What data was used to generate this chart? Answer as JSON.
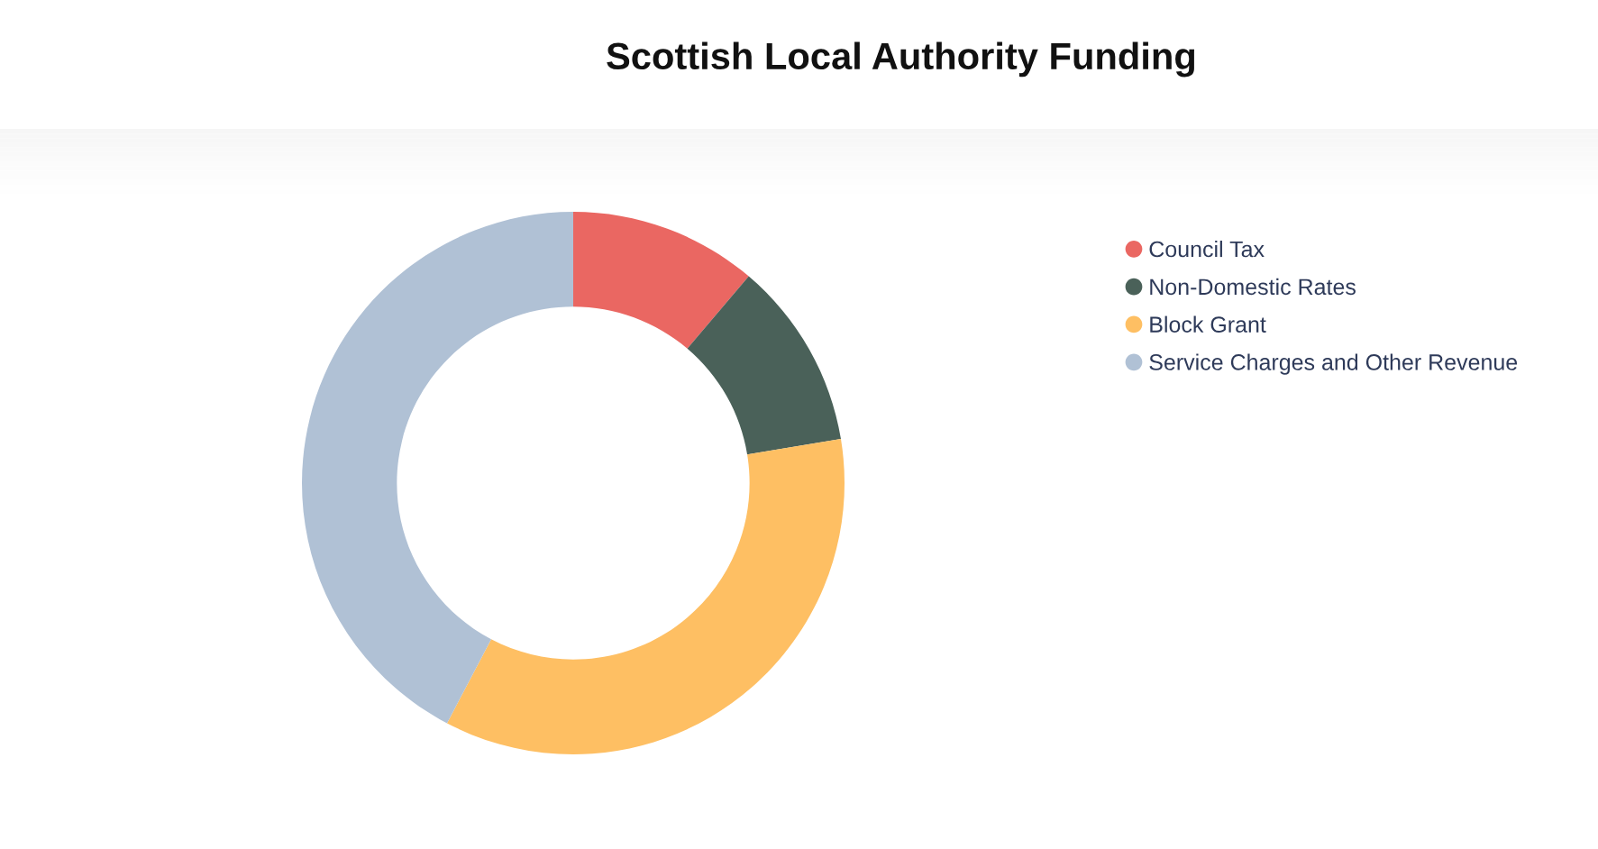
{
  "chart_data": {
    "type": "donut",
    "title": "Scottish Local Authority Funding",
    "categories": [
      "Council Tax",
      "Non-Domestic Rates",
      "Block Grant",
      "Service Charges and Other Revenue"
    ],
    "values": [
      11.2,
      11.2,
      35.3,
      42.3
    ],
    "colors": [
      "#ea6762",
      "#4a6159",
      "#febf63",
      "#b0c1d5"
    ],
    "legend": "top right"
  }
}
